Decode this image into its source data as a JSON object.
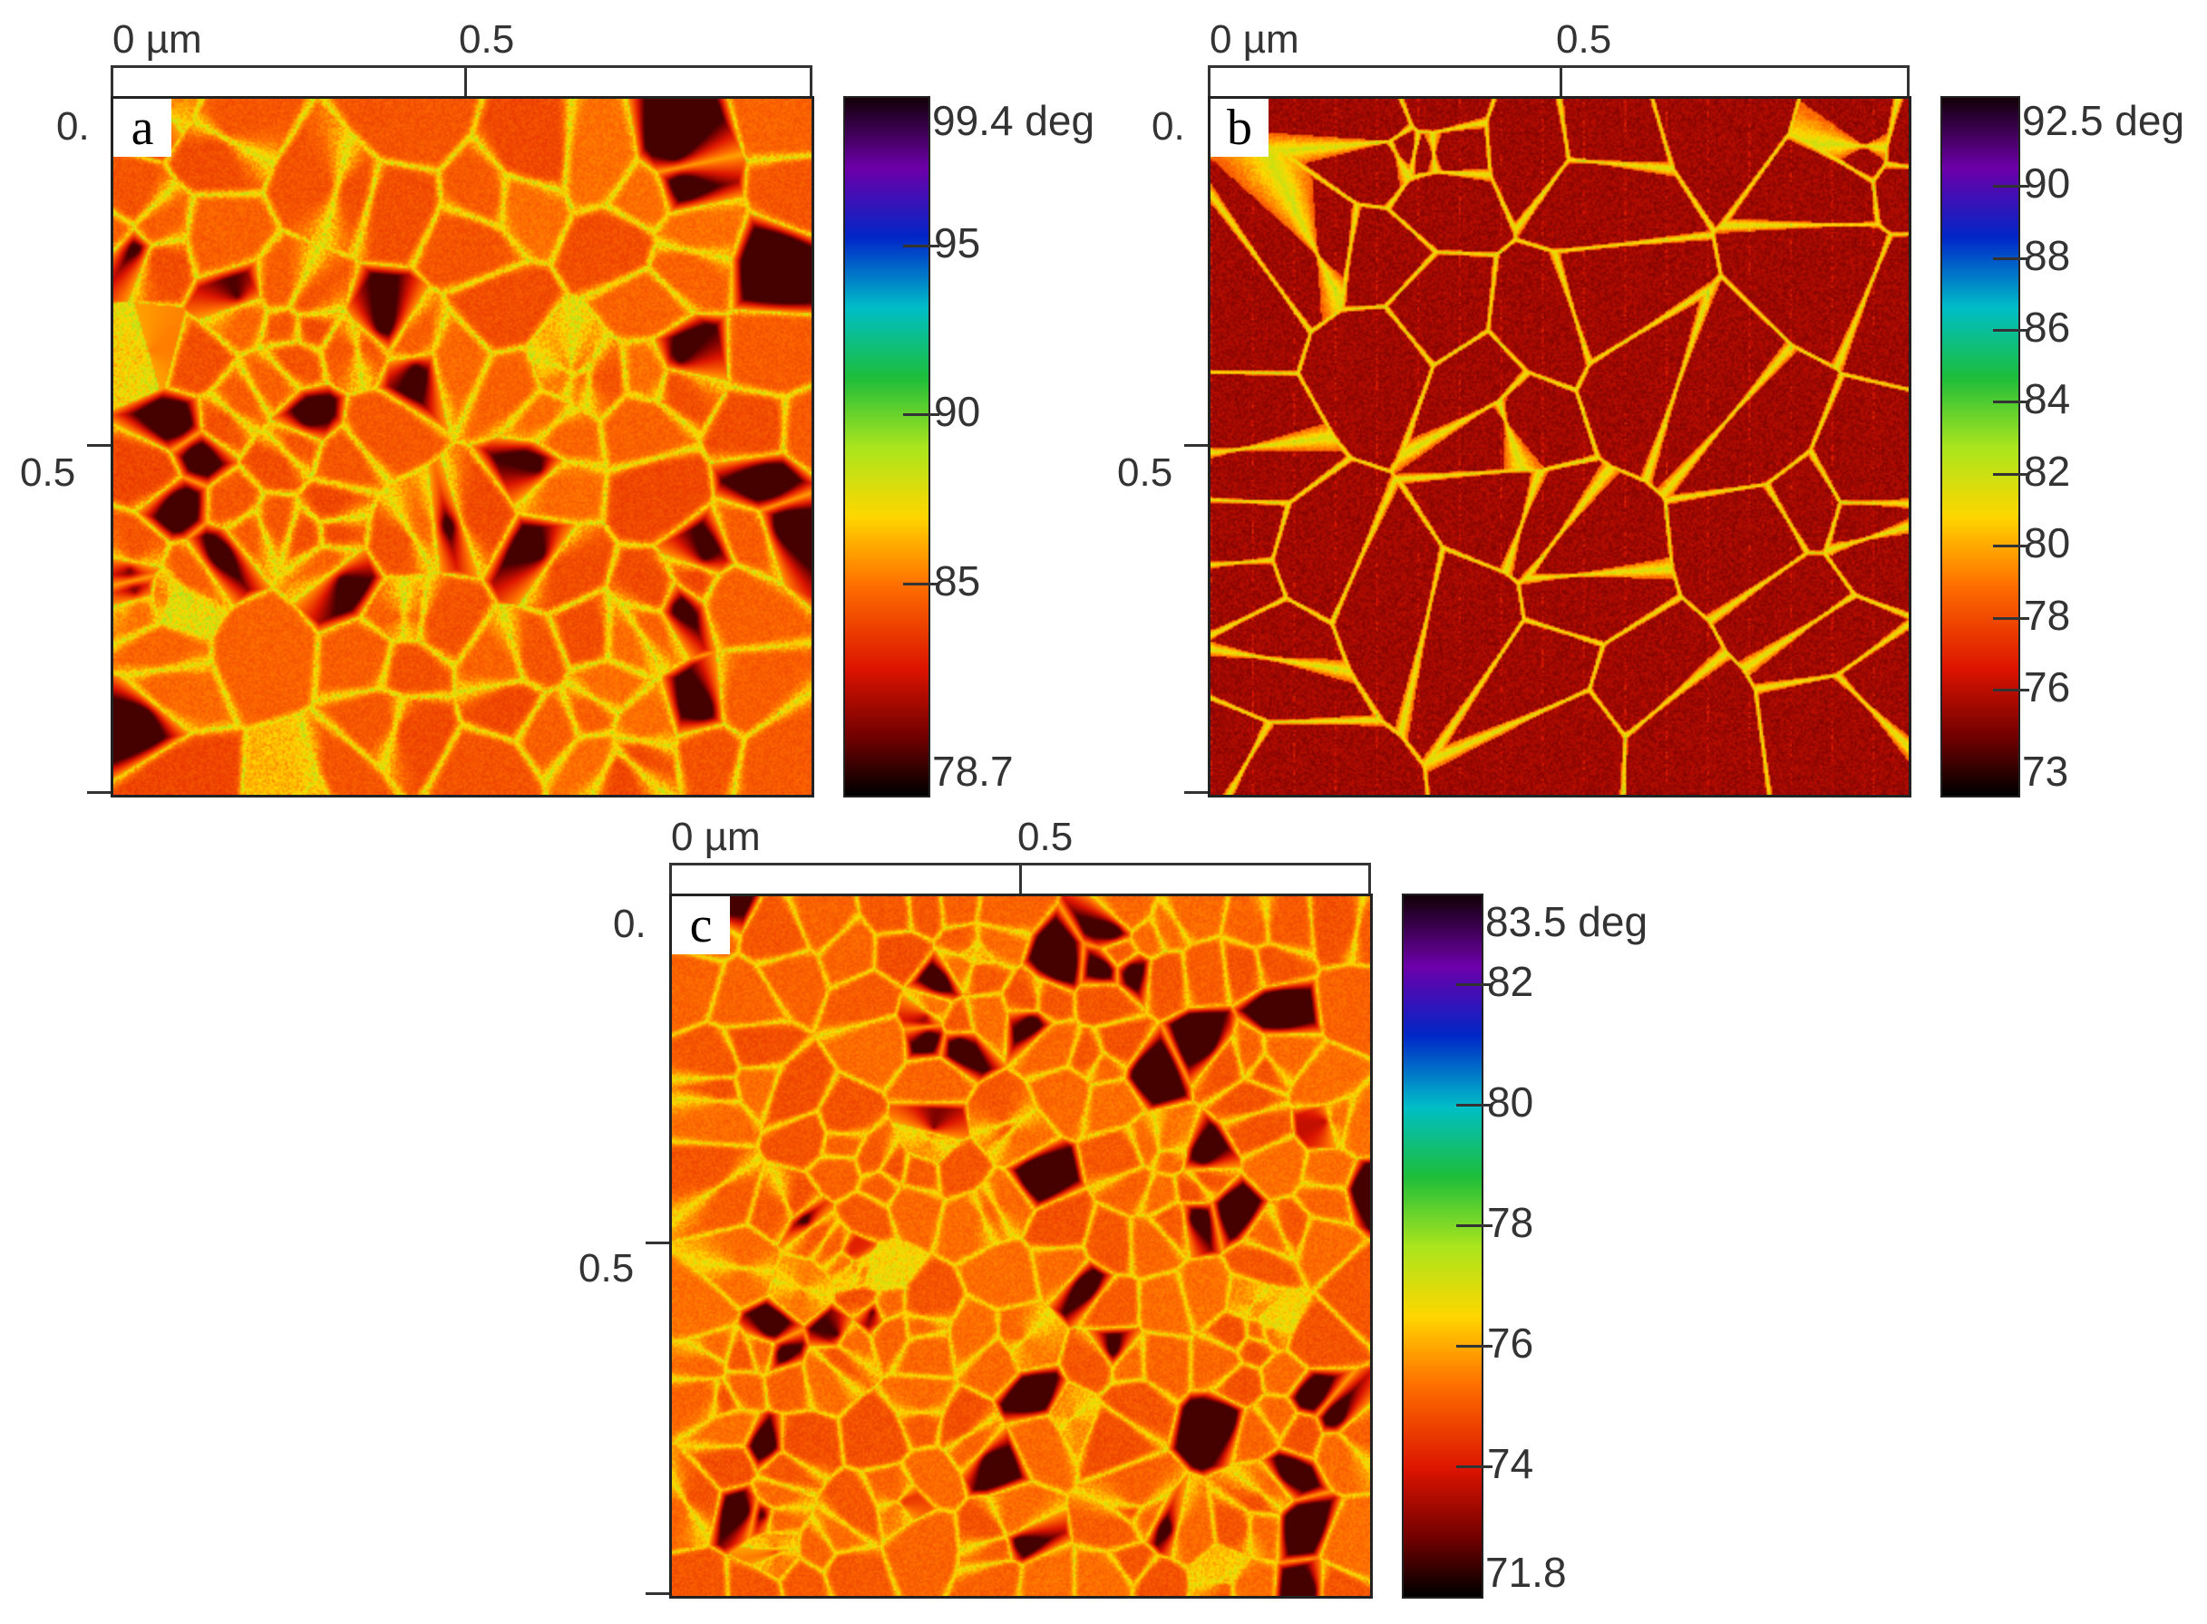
{
  "panels": [
    {
      "letter": "a",
      "x_label_start": "0 µm",
      "x_label_mid": "0.5",
      "y_label_top": "0.",
      "y_label_mid": "0.5",
      "colorbar": {
        "max_label": "99.4 deg",
        "min_label": "78.7",
        "min": 78.7,
        "max": 99.4,
        "ticks": [
          {
            "value": 95,
            "label": "95"
          },
          {
            "value": 90,
            "label": "90"
          },
          {
            "value": 85,
            "label": "85"
          }
        ]
      },
      "texture": {
        "style": "grains",
        "seed": 11,
        "darkness": 0.45,
        "greenAmount": 0.5
      }
    },
    {
      "letter": "b",
      "x_label_start": "0 µm",
      "x_label_mid": "0.5",
      "y_label_top": "0.",
      "y_label_mid": "0.5",
      "colorbar": {
        "max_label": "92.5 deg",
        "min_label": "73",
        "min": 73,
        "max": 92.5,
        "ticks": [
          {
            "value": 90,
            "label": "90"
          },
          {
            "value": 88,
            "label": "88"
          },
          {
            "value": 86,
            "label": "86"
          },
          {
            "value": 84,
            "label": "84"
          },
          {
            "value": 82,
            "label": "82"
          },
          {
            "value": 80,
            "label": "80"
          },
          {
            "value": 78,
            "label": "78"
          },
          {
            "value": 76,
            "label": "76"
          }
        ]
      },
      "texture": {
        "style": "dark-spots",
        "seed": 23,
        "darkness": 0.85,
        "greenAmount": 0.25
      }
    },
    {
      "letter": "c",
      "x_label_start": "0 µm",
      "x_label_mid": "0.5",
      "y_label_top": "0.",
      "y_label_mid": "0.5",
      "colorbar": {
        "max_label": "83.5 deg",
        "min_label": "71.8",
        "min": 71.8,
        "max": 83.5,
        "ticks": [
          {
            "value": 82,
            "label": "82"
          },
          {
            "value": 80,
            "label": "80"
          },
          {
            "value": 78,
            "label": "78"
          },
          {
            "value": 76,
            "label": "76"
          },
          {
            "value": 74,
            "label": "74"
          }
        ]
      },
      "texture": {
        "style": "fine-grains",
        "seed": 37,
        "darkness": 0.35,
        "greenAmount": 0.35
      }
    }
  ]
}
